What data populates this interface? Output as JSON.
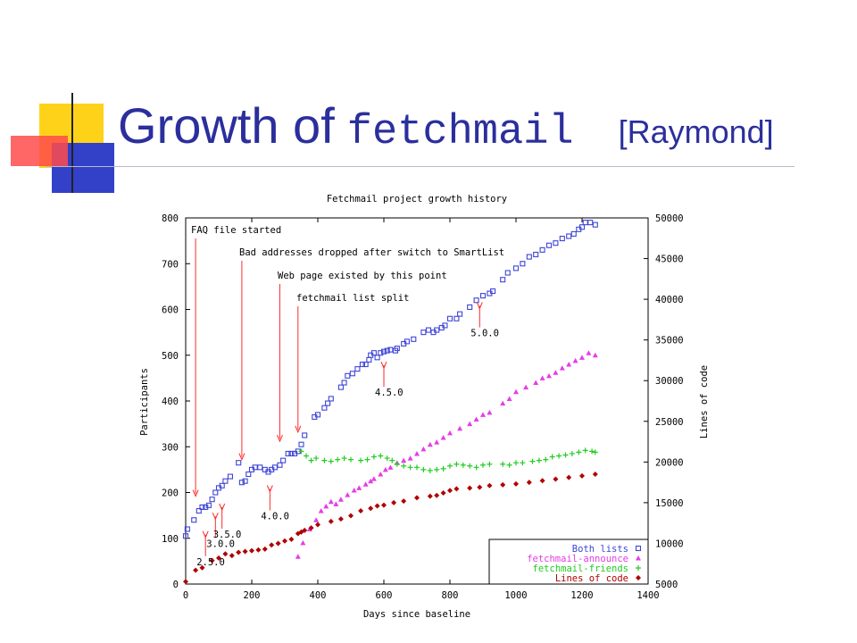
{
  "slide": {
    "title_sans": "Growth of",
    "title_mono": "fetchmail",
    "title_cite": "[Raymond]",
    "colors": {
      "title": "#2b2f9c",
      "deco_yellow": "#ffd21a",
      "deco_blue": "#3340c8",
      "deco_red": "#ff4b4b"
    }
  },
  "chart_data": {
    "type": "scatter",
    "title": "Fetchmail project growth history",
    "xlabel": "Days since baseline",
    "ylabel": "Participants",
    "y2label": "Lines of code",
    "xlim": [
      0,
      1400
    ],
    "ylim": [
      0,
      800
    ],
    "y2lim": [
      5000,
      50000
    ],
    "xticks": [
      "0",
      "200",
      "400",
      "600",
      "800",
      "1000",
      "1200",
      "1400"
    ],
    "yticks": [
      "0",
      "100",
      "200",
      "300",
      "400",
      "500",
      "600",
      "700",
      "800"
    ],
    "y2ticks": [
      "5000",
      "10000",
      "15000",
      "20000",
      "25000",
      "30000",
      "35000",
      "40000",
      "45000",
      "50000"
    ],
    "legend_position": "bottom-right",
    "series": [
      {
        "name": "Both lists",
        "marker": "square",
        "color": "#3d45d6",
        "axis": "left",
        "points": [
          [
            0,
            105
          ],
          [
            5,
            120
          ],
          [
            25,
            140
          ],
          [
            40,
            160
          ],
          [
            50,
            168
          ],
          [
            60,
            168
          ],
          [
            70,
            172
          ],
          [
            80,
            185
          ],
          [
            90,
            200
          ],
          [
            100,
            210
          ],
          [
            110,
            215
          ],
          [
            120,
            225
          ],
          [
            135,
            235
          ],
          [
            160,
            265
          ],
          [
            170,
            222
          ],
          [
            180,
            225
          ],
          [
            190,
            240
          ],
          [
            200,
            250
          ],
          [
            210,
            255
          ],
          [
            225,
            255
          ],
          [
            240,
            250
          ],
          [
            250,
            245
          ],
          [
            260,
            250
          ],
          [
            270,
            255
          ],
          [
            285,
            260
          ],
          [
            295,
            270
          ],
          [
            310,
            285
          ],
          [
            320,
            285
          ],
          [
            330,
            285
          ],
          [
            340,
            290
          ],
          [
            350,
            305
          ],
          [
            360,
            325
          ],
          [
            390,
            365
          ],
          [
            400,
            370
          ],
          [
            420,
            385
          ],
          [
            430,
            395
          ],
          [
            440,
            405
          ],
          [
            470,
            430
          ],
          [
            480,
            440
          ],
          [
            490,
            455
          ],
          [
            505,
            460
          ],
          [
            520,
            470
          ],
          [
            535,
            480
          ],
          [
            545,
            480
          ],
          [
            555,
            490
          ],
          [
            560,
            500
          ],
          [
            570,
            505
          ],
          [
            580,
            495
          ],
          [
            590,
            505
          ],
          [
            600,
            508
          ],
          [
            610,
            510
          ],
          [
            620,
            512
          ],
          [
            635,
            510
          ],
          [
            640,
            515
          ],
          [
            660,
            525
          ],
          [
            670,
            530
          ],
          [
            690,
            535
          ],
          [
            720,
            550
          ],
          [
            735,
            555
          ],
          [
            750,
            550
          ],
          [
            760,
            555
          ],
          [
            775,
            560
          ],
          [
            785,
            565
          ],
          [
            800,
            580
          ],
          [
            820,
            580
          ],
          [
            830,
            590
          ],
          [
            860,
            605
          ],
          [
            880,
            620
          ],
          [
            900,
            630
          ],
          [
            920,
            635
          ],
          [
            930,
            640
          ],
          [
            960,
            665
          ],
          [
            975,
            680
          ],
          [
            1000,
            690
          ],
          [
            1020,
            700
          ],
          [
            1040,
            715
          ],
          [
            1060,
            720
          ],
          [
            1080,
            730
          ],
          [
            1100,
            740
          ],
          [
            1120,
            745
          ],
          [
            1140,
            755
          ],
          [
            1160,
            760
          ],
          [
            1175,
            765
          ],
          [
            1190,
            775
          ],
          [
            1200,
            780
          ],
          [
            1210,
            790
          ],
          [
            1225,
            790
          ],
          [
            1240,
            785
          ]
        ]
      },
      {
        "name": "fetchmail-announce",
        "marker": "triangle",
        "color": "#e63ce6",
        "axis": "left",
        "points": [
          [
            340,
            60
          ],
          [
            355,
            90
          ],
          [
            375,
            120
          ],
          [
            395,
            140
          ],
          [
            410,
            160
          ],
          [
            425,
            170
          ],
          [
            440,
            180
          ],
          [
            455,
            175
          ],
          [
            470,
            185
          ],
          [
            490,
            195
          ],
          [
            510,
            205
          ],
          [
            525,
            210
          ],
          [
            545,
            218
          ],
          [
            560,
            225
          ],
          [
            570,
            230
          ],
          [
            590,
            240
          ],
          [
            605,
            250
          ],
          [
            620,
            255
          ],
          [
            640,
            265
          ],
          [
            660,
            270
          ],
          [
            680,
            275
          ],
          [
            700,
            285
          ],
          [
            720,
            295
          ],
          [
            740,
            305
          ],
          [
            760,
            310
          ],
          [
            780,
            320
          ],
          [
            800,
            330
          ],
          [
            830,
            340
          ],
          [
            860,
            350
          ],
          [
            880,
            360
          ],
          [
            900,
            370
          ],
          [
            920,
            375
          ],
          [
            960,
            395
          ],
          [
            980,
            405
          ],
          [
            1000,
            420
          ],
          [
            1030,
            430
          ],
          [
            1060,
            440
          ],
          [
            1080,
            450
          ],
          [
            1100,
            455
          ],
          [
            1120,
            462
          ],
          [
            1140,
            472
          ],
          [
            1160,
            480
          ],
          [
            1180,
            488
          ],
          [
            1200,
            495
          ],
          [
            1220,
            505
          ],
          [
            1240,
            500
          ]
        ]
      },
      {
        "name": "fetchmail-friends",
        "marker": "plus",
        "color": "#22cc22",
        "axis": "left",
        "points": [
          [
            350,
            290
          ],
          [
            365,
            280
          ],
          [
            380,
            270
          ],
          [
            395,
            275
          ],
          [
            420,
            270
          ],
          [
            440,
            268
          ],
          [
            460,
            272
          ],
          [
            480,
            275
          ],
          [
            500,
            272
          ],
          [
            530,
            270
          ],
          [
            550,
            272
          ],
          [
            570,
            278
          ],
          [
            590,
            280
          ],
          [
            610,
            275
          ],
          [
            625,
            270
          ],
          [
            640,
            262
          ],
          [
            660,
            258
          ],
          [
            680,
            255
          ],
          [
            700,
            255
          ],
          [
            720,
            250
          ],
          [
            740,
            248
          ],
          [
            760,
            250
          ],
          [
            780,
            252
          ],
          [
            800,
            258
          ],
          [
            820,
            262
          ],
          [
            840,
            260
          ],
          [
            860,
            258
          ],
          [
            880,
            255
          ],
          [
            900,
            260
          ],
          [
            920,
            262
          ],
          [
            960,
            262
          ],
          [
            980,
            260
          ],
          [
            1000,
            265
          ],
          [
            1020,
            265
          ],
          [
            1050,
            268
          ],
          [
            1070,
            270
          ],
          [
            1090,
            272
          ],
          [
            1110,
            278
          ],
          [
            1130,
            280
          ],
          [
            1150,
            282
          ],
          [
            1170,
            285
          ],
          [
            1190,
            288
          ],
          [
            1210,
            292
          ],
          [
            1230,
            290
          ],
          [
            1240,
            288
          ]
        ]
      },
      {
        "name": "Lines of code",
        "marker": "diamond",
        "color": "#b00000",
        "axis": "right",
        "points": [
          [
            0,
            5300
          ],
          [
            30,
            6700
          ],
          [
            50,
            7000
          ],
          [
            80,
            7900
          ],
          [
            100,
            8200
          ],
          [
            120,
            8700
          ],
          [
            140,
            8500
          ],
          [
            160,
            8900
          ],
          [
            180,
            9000
          ],
          [
            200,
            9100
          ],
          [
            220,
            9200
          ],
          [
            240,
            9300
          ],
          [
            260,
            9800
          ],
          [
            280,
            10000
          ],
          [
            300,
            10300
          ],
          [
            320,
            10500
          ],
          [
            340,
            11200
          ],
          [
            350,
            11400
          ],
          [
            360,
            11600
          ],
          [
            380,
            11900
          ],
          [
            400,
            12300
          ],
          [
            440,
            12700
          ],
          [
            470,
            13000
          ],
          [
            500,
            13400
          ],
          [
            530,
            14000
          ],
          [
            560,
            14300
          ],
          [
            580,
            14600
          ],
          [
            600,
            14700
          ],
          [
            630,
            15000
          ],
          [
            660,
            15200
          ],
          [
            700,
            15600
          ],
          [
            740,
            15800
          ],
          [
            760,
            15900
          ],
          [
            780,
            16200
          ],
          [
            800,
            16500
          ],
          [
            820,
            16700
          ],
          [
            860,
            16800
          ],
          [
            890,
            16900
          ],
          [
            920,
            17100
          ],
          [
            960,
            17200
          ],
          [
            1000,
            17300
          ],
          [
            1040,
            17500
          ],
          [
            1080,
            17700
          ],
          [
            1120,
            17900
          ],
          [
            1160,
            18100
          ],
          [
            1200,
            18300
          ],
          [
            1240,
            18500
          ]
        ]
      }
    ],
    "annotations": [
      {
        "text": "FAQ file started",
        "x": 30,
        "y": 190
      },
      {
        "text": "Bad addresses dropped after switch to SmartList",
        "x": 170,
        "y": 270
      },
      {
        "text": "Web page existed by this point",
        "x": 285,
        "y": 310
      },
      {
        "text": "fetchmail list split",
        "x": 340,
        "y": 330
      },
      {
        "text": "2.5.0",
        "x": 60,
        "y": 100
      },
      {
        "text": "3.0.0",
        "x": 90,
        "y": 140
      },
      {
        "text": "3.5.0",
        "x": 110,
        "y": 160
      },
      {
        "text": "4.0.0",
        "x": 255,
        "y": 200
      },
      {
        "text": "4.5.0",
        "x": 600,
        "y": 470
      },
      {
        "text": "5.0.0",
        "x": 890,
        "y": 600
      }
    ]
  }
}
